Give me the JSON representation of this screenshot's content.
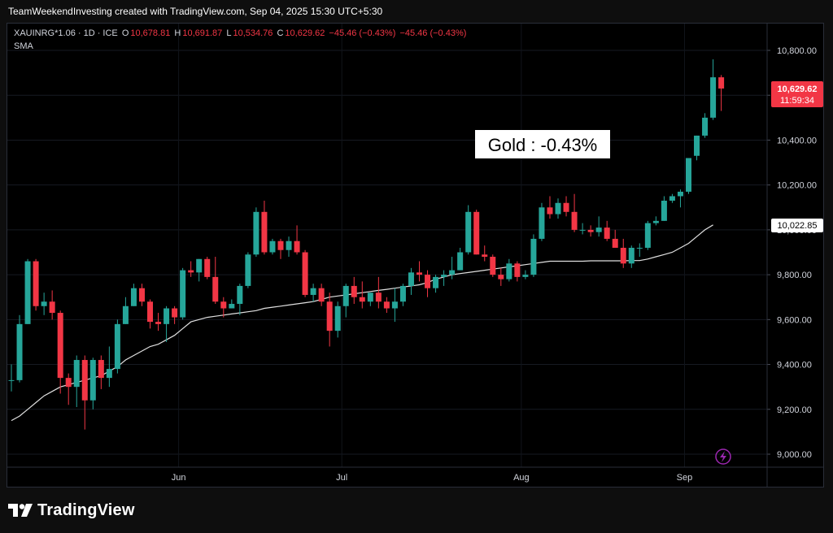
{
  "header": {
    "attribution": "TeamWeekendInvesting created with TradingView.com, Sep 04, 2025 15:30 UTC+5:30"
  },
  "legend": {
    "symbol": "XAUINRG*1.06 · 1D · ICE",
    "open_key": "O",
    "open": "10,678.81",
    "high_key": "H",
    "high": "10,691.87",
    "low_key": "L",
    "low": "10,534.76",
    "close_key": "C",
    "close": "10,629.62",
    "change": "−45.46 (−0.43%)",
    "change2": "−45.46 (−0.43%)",
    "indicator": "SMA"
  },
  "annotation": "Gold : -0.43%",
  "price_tag": {
    "price": "10,629.62",
    "countdown": "11:59:34"
  },
  "sma_tag": "10,022.85",
  "brand": {
    "name": "TradingView"
  },
  "colors": {
    "up": "#26a69a",
    "down": "#f23645",
    "sma": "#e0e0e0",
    "background": "#000000"
  },
  "chart_data": {
    "type": "candlestick",
    "y_ticks": [
      "10,800.00",
      "10,600.00",
      "10,400.00",
      "10,200.00",
      "10,000.00",
      "9,800.00",
      "9,600.00",
      "9,400.00",
      "9,200.00",
      "9,000.00"
    ],
    "ylim": [
      8950,
      10950
    ],
    "x_tick_labels": [
      {
        "label": "Jun",
        "index": 20
      },
      {
        "label": "Jul",
        "index": 40
      },
      {
        "label": "Aug",
        "index": 62
      },
      {
        "label": "Sep",
        "index": 82
      }
    ],
    "candles": [
      [
        9330,
        9400,
        9280,
        9330
      ],
      [
        9330,
        9620,
        9320,
        9580
      ],
      [
        9580,
        9870,
        9580,
        9860
      ],
      [
        9860,
        9870,
        9640,
        9660
      ],
      [
        9660,
        9720,
        9620,
        9680
      ],
      [
        9680,
        9730,
        9600,
        9630
      ],
      [
        9630,
        9640,
        9270,
        9340
      ],
      [
        9340,
        9360,
        9220,
        9300
      ],
      [
        9300,
        9440,
        9210,
        9420
      ],
      [
        9420,
        9440,
        9110,
        9240
      ],
      [
        9240,
        9430,
        9200,
        9420
      ],
      [
        9420,
        9440,
        9290,
        9340
      ],
      [
        9340,
        9480,
        9300,
        9380
      ],
      [
        9380,
        9600,
        9360,
        9580
      ],
      [
        9580,
        9700,
        9580,
        9660
      ],
      [
        9660,
        9760,
        9660,
        9740
      ],
      [
        9740,
        9760,
        9660,
        9680
      ],
      [
        9680,
        9690,
        9560,
        9590
      ],
      [
        9590,
        9630,
        9550,
        9580
      ],
      [
        9580,
        9660,
        9500,
        9650
      ],
      [
        9650,
        9660,
        9580,
        9610
      ],
      [
        9610,
        9830,
        9600,
        9820
      ],
      [
        9820,
        9860,
        9790,
        9810
      ],
      [
        9810,
        9870,
        9770,
        9870
      ],
      [
        9870,
        9880,
        9780,
        9790
      ],
      [
        9790,
        9880,
        9670,
        9680
      ],
      [
        9680,
        9700,
        9610,
        9650
      ],
      [
        9650,
        9690,
        9650,
        9670
      ],
      [
        9670,
        9760,
        9620,
        9750
      ],
      [
        9750,
        9900,
        9740,
        9890
      ],
      [
        9890,
        10100,
        9880,
        10080
      ],
      [
        10080,
        10130,
        9890,
        9900
      ],
      [
        9900,
        9960,
        9890,
        9950
      ],
      [
        9950,
        9960,
        9870,
        9910
      ],
      [
        9910,
        9970,
        9880,
        9950
      ],
      [
        9950,
        10020,
        9890,
        9900
      ],
      [
        9900,
        9910,
        9700,
        9710
      ],
      [
        9710,
        9760,
        9680,
        9740
      ],
      [
        9740,
        9760,
        9660,
        9680
      ],
      [
        9680,
        9720,
        9480,
        9550
      ],
      [
        9550,
        9680,
        9520,
        9660
      ],
      [
        9660,
        9760,
        9610,
        9750
      ],
      [
        9750,
        9790,
        9670,
        9700
      ],
      [
        9700,
        9770,
        9650,
        9680
      ],
      [
        9680,
        9720,
        9660,
        9720
      ],
      [
        9720,
        9790,
        9650,
        9680
      ],
      [
        9680,
        9700,
        9630,
        9650
      ],
      [
        9650,
        9740,
        9590,
        9680
      ],
      [
        9680,
        9760,
        9660,
        9750
      ],
      [
        9750,
        9830,
        9710,
        9810
      ],
      [
        9810,
        9860,
        9770,
        9800
      ],
      [
        9800,
        9820,
        9700,
        9740
      ],
      [
        9740,
        9800,
        9720,
        9790
      ],
      [
        9790,
        9820,
        9750,
        9800
      ],
      [
        9800,
        9880,
        9780,
        9820
      ],
      [
        9820,
        9920,
        9820,
        9900
      ],
      [
        9900,
        10110,
        9890,
        10080
      ],
      [
        10080,
        10090,
        9890,
        9890
      ],
      [
        9890,
        9930,
        9860,
        9880
      ],
      [
        9880,
        9890,
        9790,
        9800
      ],
      [
        9800,
        9830,
        9750,
        9780
      ],
      [
        9780,
        9870,
        9770,
        9850
      ],
      [
        9850,
        9860,
        9770,
        9790
      ],
      [
        9790,
        9820,
        9780,
        9800
      ],
      [
        9800,
        9980,
        9790,
        9960
      ],
      [
        9960,
        10120,
        9950,
        10100
      ],
      [
        10100,
        10150,
        10050,
        10070
      ],
      [
        10070,
        10140,
        10050,
        10120
      ],
      [
        10120,
        10150,
        10060,
        10080
      ],
      [
        10080,
        10160,
        9990,
        10000
      ],
      [
        10000,
        10030,
        9980,
        10000
      ],
      [
        10000,
        10020,
        9970,
        9990
      ],
      [
        9990,
        10060,
        9970,
        10010
      ],
      [
        10010,
        10040,
        9950,
        9960
      ],
      [
        9960,
        10000,
        9920,
        9920
      ],
      [
        9920,
        9960,
        9830,
        9850
      ],
      [
        9850,
        9930,
        9830,
        9920
      ],
      [
        9920,
        9940,
        9880,
        9920
      ],
      [
        9920,
        10040,
        9910,
        10030
      ],
      [
        10030,
        10060,
        10020,
        10040
      ],
      [
        10040,
        10150,
        10040,
        10130
      ],
      [
        10130,
        10160,
        10120,
        10150
      ],
      [
        10150,
        10180,
        10100,
        10170
      ],
      [
        10170,
        10300,
        10160,
        10320
      ],
      [
        10330,
        10420,
        10310,
        10420
      ],
      [
        10420,
        10520,
        10410,
        10500
      ],
      [
        10500,
        10760,
        10490,
        10680
      ],
      [
        10680,
        10690,
        10530,
        10630
      ]
    ],
    "sma": [
      9150,
      9170,
      9200,
      9230,
      9260,
      9280,
      9300,
      9310,
      9320,
      9330,
      9340,
      9350,
      9370,
      9390,
      9420,
      9440,
      9460,
      9480,
      9490,
      9510,
      9530,
      9560,
      9590,
      9600,
      9610,
      9615,
      9620,
      9625,
      9630,
      9635,
      9640,
      9650,
      9655,
      9660,
      9665,
      9670,
      9675,
      9680,
      9690,
      9700,
      9705,
      9710,
      9715,
      9720,
      9725,
      9730,
      9735,
      9740,
      9745,
      9750,
      9755,
      9765,
      9780,
      9790,
      9800,
      9805,
      9810,
      9815,
      9820,
      9825,
      9830,
      9835,
      9840,
      9845,
      9850,
      9855,
      9860,
      9860,
      9860,
      9860,
      9860,
      9862,
      9862,
      9862,
      9862,
      9862,
      9863,
      9863,
      9870,
      9880,
      9890,
      9900,
      9920,
      9940,
      9970,
      10000,
      10022
    ]
  }
}
